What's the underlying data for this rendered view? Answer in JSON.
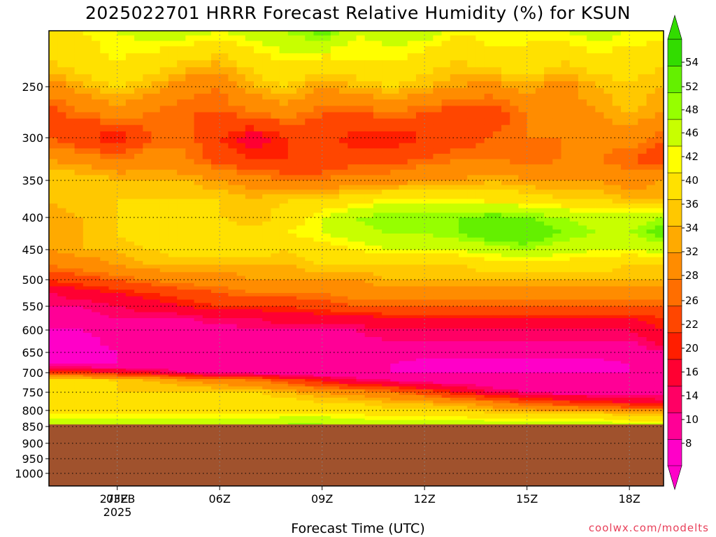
{
  "chart_data": {
    "type": "heatmap",
    "title": "2025022701 HRRR Forecast Relative Humidity (%) for KSUN",
    "xlabel": "Forecast Time (UTC)",
    "ylabel": "",
    "x_ticks": [
      "03Z",
      "06Z",
      "09Z",
      "12Z",
      "15Z",
      "18Z"
    ],
    "x_tick_hours": [
      3,
      6,
      9,
      12,
      15,
      18
    ],
    "x_range_hours": [
      1,
      19
    ],
    "date_label": [
      "27FEB",
      "2025"
    ],
    "y_ticks": [
      250,
      300,
      350,
      400,
      450,
      500,
      550,
      600,
      650,
      700,
      750,
      800,
      850,
      900,
      950,
      1000
    ],
    "y_tick_labels": [
      "250",
      "300",
      "350",
      "400",
      "450",
      "500",
      "550",
      "600",
      "650",
      "700",
      "750",
      "800",
      "850",
      "900",
      "950",
      "1000"
    ],
    "y_range_hpa": [
      200,
      1050
    ],
    "grid": true,
    "colorbar_levels": [
      8,
      10,
      14,
      16,
      20,
      22,
      26,
      28,
      32,
      34,
      36,
      40,
      42,
      46,
      48,
      52,
      54
    ],
    "colorbar_labels": [
      "54",
      "52",
      "48",
      "46",
      "42",
      "40",
      "36",
      "34",
      "32",
      "28",
      "26",
      "22",
      "20",
      "16",
      "14",
      "10",
      "8"
    ],
    "colorbar_colors": [
      "#ff00c8",
      "#ff0096",
      "#ff0064",
      "#ff0032",
      "#ff1e00",
      "#ff4600",
      "#ff6e00",
      "#ff8c00",
      "#ffaa00",
      "#ffc800",
      "#ffe100",
      "#ffff00",
      "#c8ff00",
      "#96ff00",
      "#64f000",
      "#32dc00"
    ],
    "terrain_color": "#a0522d",
    "surface_pressure_hpa": 843,
    "profiles": [
      {
        "p": 205,
        "rh": [
          40,
          40,
          42,
          44,
          44,
          42,
          44,
          46,
          50,
          42,
          44,
          44,
          40,
          42,
          40,
          42,
          44,
          42,
          42
        ]
      },
      {
        "p": 230,
        "rh": [
          36,
          38,
          40,
          38,
          36,
          34,
          38,
          40,
          38,
          40,
          40,
          38,
          36,
          38,
          40,
          36,
          38,
          38,
          36
        ]
      },
      {
        "p": 250,
        "rh": [
          30,
          34,
          36,
          34,
          30,
          28,
          34,
          36,
          32,
          34,
          36,
          34,
          32,
          30,
          34,
          30,
          34,
          36,
          34
        ]
      },
      {
        "p": 275,
        "rh": [
          24,
          28,
          30,
          28,
          26,
          26,
          28,
          30,
          26,
          26,
          28,
          26,
          24,
          24,
          28,
          30,
          32,
          34,
          32
        ]
      },
      {
        "p": 300,
        "rh": [
          26,
          22,
          20,
          26,
          28,
          22,
          18,
          22,
          24,
          20,
          20,
          22,
          24,
          26,
          28,
          28,
          30,
          30,
          26
        ]
      },
      {
        "p": 325,
        "rh": [
          32,
          30,
          28,
          30,
          28,
          24,
          22,
          22,
          22,
          24,
          24,
          26,
          28,
          28,
          26,
          28,
          28,
          26,
          24
        ]
      },
      {
        "p": 350,
        "rh": [
          36,
          36,
          34,
          34,
          34,
          32,
          30,
          28,
          28,
          30,
          30,
          32,
          32,
          34,
          32,
          32,
          32,
          30,
          32
        ]
      },
      {
        "p": 375,
        "rh": [
          34,
          36,
          36,
          36,
          36,
          36,
          34,
          36,
          36,
          38,
          40,
          40,
          40,
          38,
          38,
          36,
          36,
          34,
          34
        ]
      },
      {
        "p": 400,
        "rh": [
          32,
          34,
          36,
          38,
          38,
          36,
          34,
          38,
          42,
          46,
          48,
          48,
          48,
          50,
          48,
          46,
          44,
          44,
          46
        ]
      },
      {
        "p": 425,
        "rh": [
          32,
          34,
          36,
          38,
          38,
          38,
          38,
          40,
          42,
          44,
          46,
          46,
          48,
          52,
          52,
          48,
          46,
          46,
          50
        ]
      },
      {
        "p": 450,
        "rh": [
          32,
          34,
          34,
          36,
          38,
          38,
          38,
          36,
          38,
          40,
          42,
          42,
          42,
          44,
          46,
          44,
          42,
          42,
          44
        ]
      },
      {
        "p": 475,
        "rh": [
          28,
          30,
          32,
          34,
          34,
          34,
          34,
          34,
          36,
          36,
          36,
          36,
          36,
          38,
          38,
          38,
          38,
          36,
          36
        ]
      },
      {
        "p": 500,
        "rh": [
          22,
          24,
          26,
          28,
          30,
          30,
          32,
          32,
          32,
          32,
          34,
          34,
          34,
          34,
          34,
          34,
          34,
          34,
          34
        ]
      },
      {
        "p": 525,
        "rh": [
          16,
          18,
          20,
          22,
          24,
          26,
          28,
          28,
          28,
          30,
          30,
          30,
          30,
          30,
          30,
          30,
          30,
          30,
          30
        ]
      },
      {
        "p": 550,
        "rh": [
          14,
          14,
          16,
          18,
          20,
          22,
          22,
          22,
          24,
          26,
          26,
          26,
          26,
          26,
          26,
          26,
          26,
          26,
          26
        ]
      },
      {
        "p": 575,
        "rh": [
          12,
          12,
          14,
          14,
          14,
          16,
          16,
          18,
          18,
          18,
          20,
          20,
          20,
          20,
          20,
          20,
          20,
          20,
          22
        ]
      },
      {
        "p": 600,
        "rh": [
          10,
          10,
          12,
          12,
          12,
          12,
          14,
          14,
          14,
          14,
          16,
          16,
          16,
          16,
          16,
          16,
          16,
          16,
          20
        ]
      },
      {
        "p": 650,
        "rh": [
          8,
          8,
          10,
          10,
          10,
          10,
          12,
          12,
          12,
          12,
          12,
          12,
          12,
          12,
          12,
          12,
          12,
          12,
          14
        ]
      },
      {
        "p": 680,
        "rh": [
          10,
          10,
          10,
          10,
          10,
          10,
          10,
          10,
          10,
          10,
          10,
          8,
          8,
          8,
          8,
          8,
          8,
          10,
          10
        ]
      },
      {
        "p": 700,
        "rh": [
          22,
          22,
          20,
          18,
          14,
          12,
          12,
          10,
          10,
          10,
          10,
          10,
          10,
          10,
          10,
          10,
          10,
          10,
          10
        ]
      },
      {
        "p": 720,
        "rh": [
          40,
          38,
          36,
          34,
          32,
          30,
          28,
          24,
          20,
          16,
          14,
          12,
          12,
          10,
          10,
          10,
          10,
          10,
          10
        ]
      },
      {
        "p": 750,
        "rh": [
          38,
          36,
          36,
          36,
          36,
          36,
          36,
          34,
          32,
          30,
          28,
          24,
          20,
          16,
          14,
          12,
          12,
          12,
          12
        ]
      },
      {
        "p": 780,
        "rh": [
          36,
          38,
          38,
          40,
          38,
          38,
          38,
          38,
          36,
          36,
          34,
          34,
          32,
          30,
          26,
          24,
          22,
          20,
          18
        ]
      },
      {
        "p": 810,
        "rh": [
          40,
          40,
          40,
          40,
          40,
          40,
          40,
          40,
          40,
          40,
          38,
          38,
          38,
          36,
          36,
          36,
          36,
          34,
          34
        ]
      },
      {
        "p": 840,
        "rh": [
          44,
          44,
          44,
          44,
          44,
          44,
          44,
          46,
          46,
          44,
          44,
          44,
          44,
          44,
          44,
          44,
          44,
          42,
          42
        ]
      }
    ]
  },
  "credit": "coolwx.com/modelts"
}
